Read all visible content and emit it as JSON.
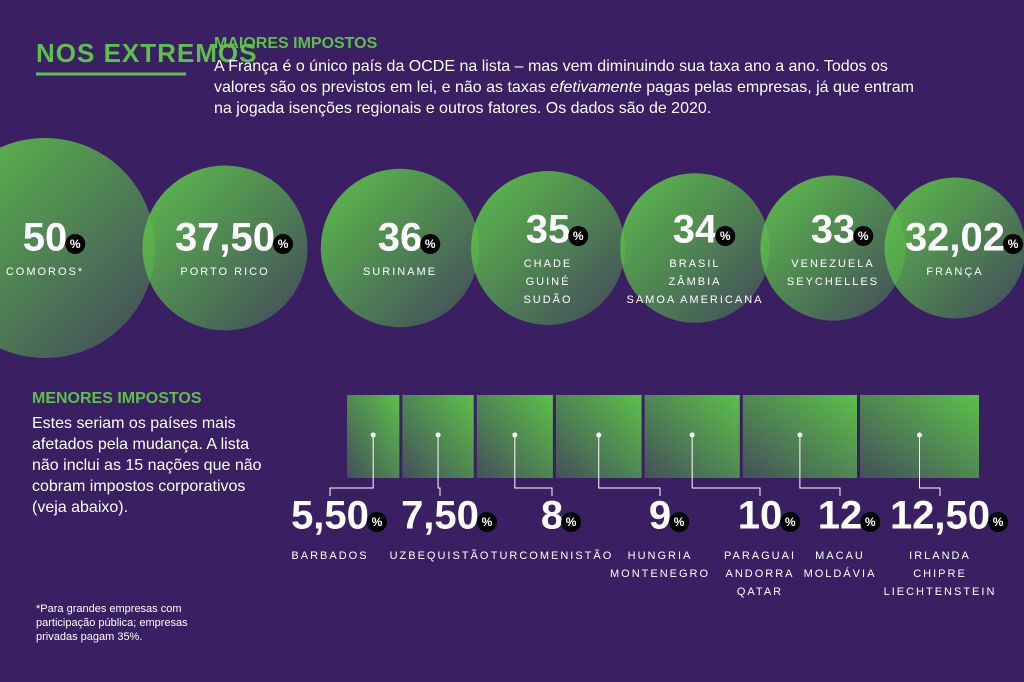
{
  "header": "NOS EXTREMOS",
  "chart_data": [
    {
      "type": "bubble",
      "title": "MAIORES IMPOSTOS",
      "description": [
        "A França é o único país da OCDE na lista – mas vem diminuindo sua taxa ano a ano. Todos os valores são os previstos em lei, e não as taxas",
        "efetivamente",
        "pagas pelas empresas, já que entram na jogada isenções regionais e outros fatores. Os dados são de 2020."
      ],
      "unit": "%",
      "categories": [
        [
          "COMOROS*"
        ],
        [
          "PORTO RICO"
        ],
        [
          "SURINAME"
        ],
        [
          "CHADE",
          "GUINÉ",
          "SUDÃO"
        ],
        [
          "BRASIL",
          "ZÂMBIA",
          "SAMOA AMERICANA"
        ],
        [
          "VENEZUELA",
          "SEYCHELLES"
        ],
        [
          "FRANÇA"
        ]
      ],
      "values": [
        50,
        37.5,
        36,
        35,
        34,
        33,
        32.02
      ],
      "value_labels": [
        "50",
        "37,50",
        "36",
        "35",
        "34",
        "33",
        "32,02"
      ],
      "color": "#5cc04a"
    },
    {
      "type": "bar",
      "title": "MENORES IMPOSTOS",
      "description": [
        "Estes seriam os países mais afetados pela mudança. A lista não inclui as 15 nações que não cobram impostos corporativos (veja abaixo)."
      ],
      "unit": "%",
      "categories": [
        [
          "BARBADOS"
        ],
        [
          "UZBEQUISTÃO"
        ],
        [
          "TURCOMENISTÃO"
        ],
        [
          "HUNGRIA",
          "MONTENEGRO"
        ],
        [
          "PARAGUAI",
          "ANDORRA",
          "QATAR"
        ],
        [
          "MACAU",
          "MOLDÁVIA"
        ],
        [
          "IRLANDA",
          "CHIPRE",
          "LIECHTENSTEIN"
        ]
      ],
      "values": [
        5.5,
        7.5,
        8,
        9,
        10,
        12,
        12.5
      ],
      "value_labels": [
        "5,50",
        "7,50",
        "8",
        "9",
        "10",
        "12",
        "12,50"
      ],
      "color": "#5cc04a"
    }
  ],
  "footnote": [
    "*Para grandes empresas com",
    "participação pública; empresas",
    "privadas pagam 35%."
  ]
}
